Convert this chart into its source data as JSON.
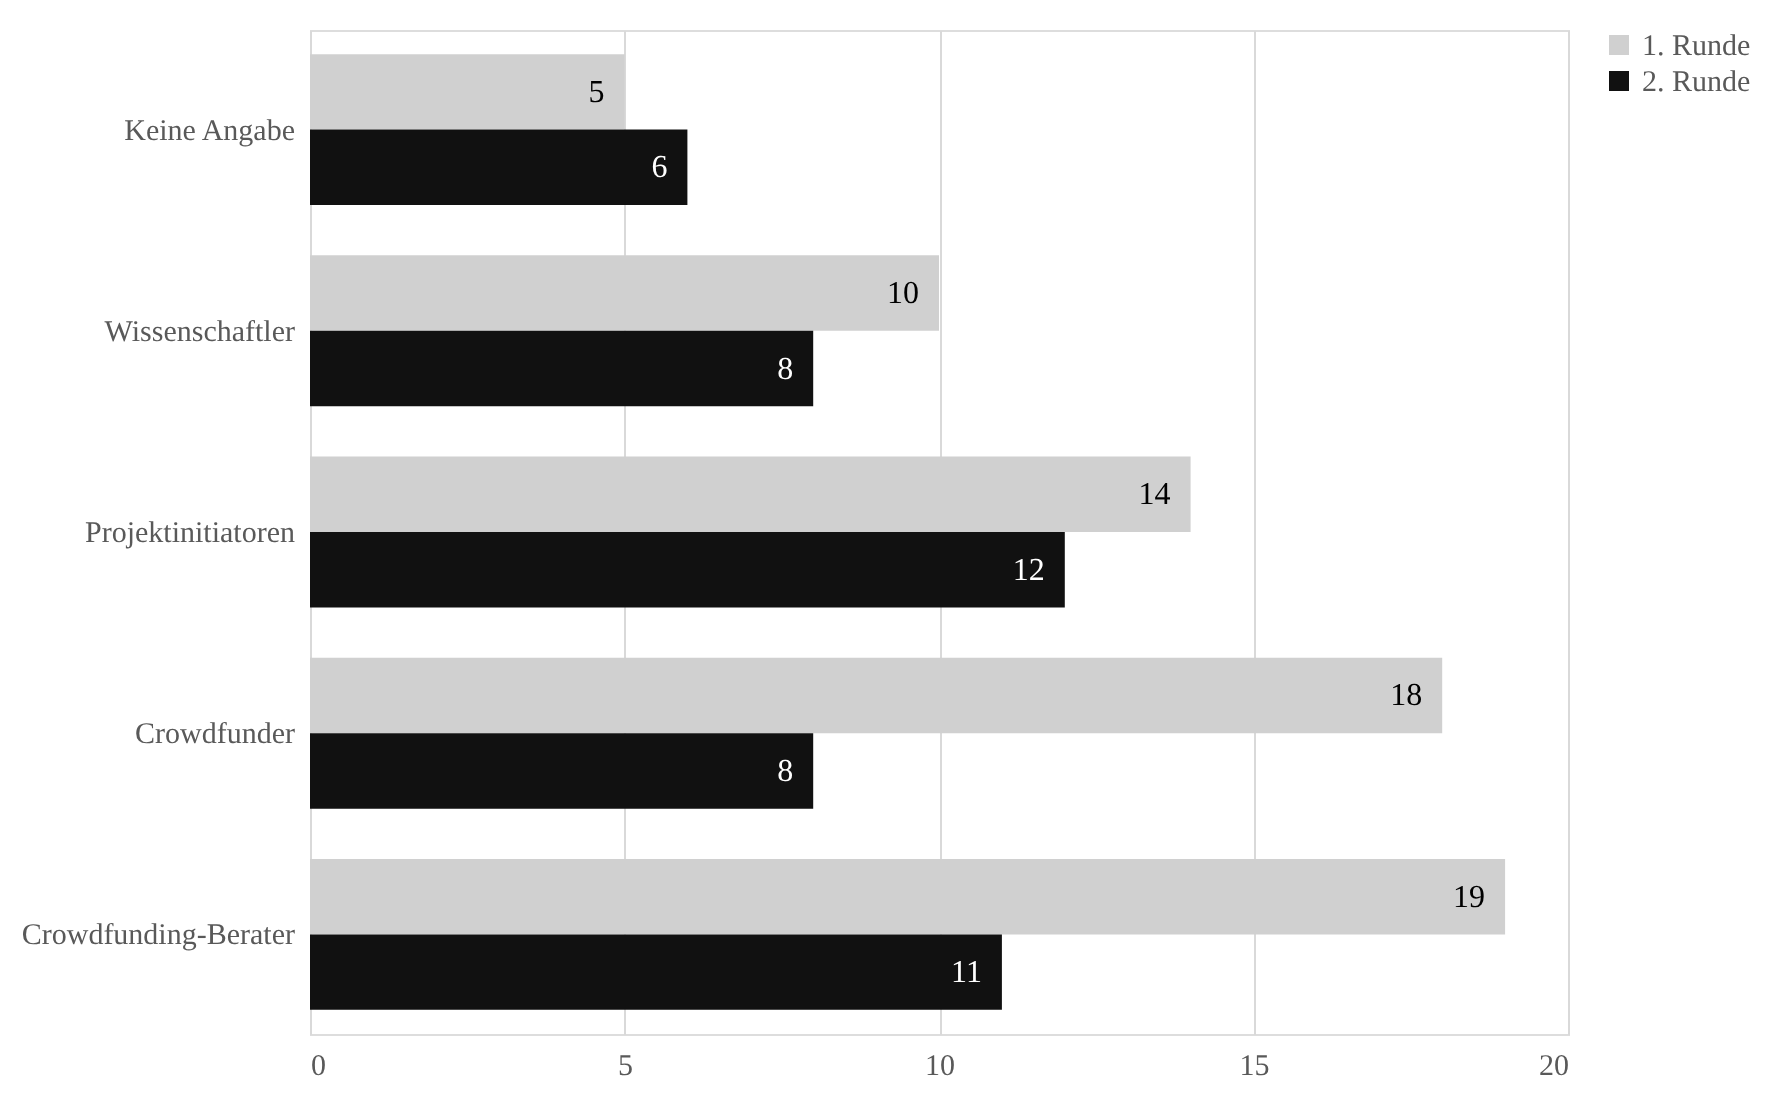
{
  "chart_data": {
    "type": "bar",
    "orientation": "horizontal",
    "categories": [
      "Keine Angabe",
      "Wissenschaftler",
      "Projektinitiatoren",
      "Crowdfunder",
      "Crowdfunding-Berater"
    ],
    "series": [
      {
        "name": "1. Runde",
        "color": "#d0d0d0",
        "values": [
          5,
          10,
          14,
          18,
          19
        ]
      },
      {
        "name": "2. Runde",
        "color": "#111111",
        "values": [
          6,
          8,
          12,
          8,
          11
        ]
      }
    ],
    "xlim": [
      0,
      20
    ],
    "xticks": [
      0,
      5,
      10,
      15,
      20
    ],
    "grid": "x",
    "legend": "right",
    "data_labels": true
  }
}
